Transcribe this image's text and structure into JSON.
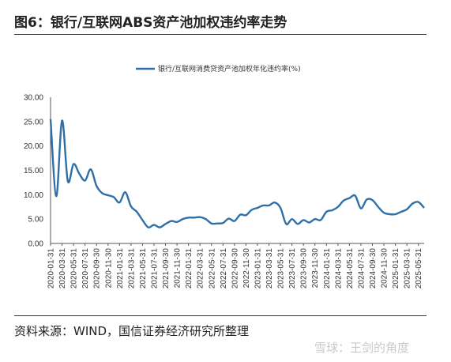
{
  "figure": {
    "title": "图6：银行/互联网ABS资产池加权违约率走势",
    "source": "资料来源：WIND，国信证券经济研究所整理",
    "watermark": "雪球：王剑的角度"
  },
  "chart_data": {
    "type": "line",
    "legend_position": "top-center",
    "ylim": [
      0,
      30
    ],
    "yticks": [
      "30.00",
      "25.00",
      "20.00",
      "15.00",
      "10.00",
      "5.00",
      "0.00"
    ],
    "grid": false,
    "color": "#2e6fa8",
    "x_tick_labels": [
      "2020-01-31",
      "2020-03-31",
      "2020-05-31",
      "2020-07-31",
      "2020-09-30",
      "2020-11-30",
      "2021-01-31",
      "2021-03-31",
      "2021-05-31",
      "2021-07-31",
      "2021-09-30",
      "2021-11-30",
      "2022-01-31",
      "2022-03-31",
      "2022-05-31",
      "2022-07-31",
      "2022-09-30",
      "2022-11-30",
      "2023-01-31",
      "2023-03-31",
      "2023-05-31",
      "2023-07-31",
      "2023-09-30",
      "2023-11-30",
      "2024-01-31",
      "2024-03-31",
      "2024-05-31",
      "2024-07-31",
      "2024-09-30",
      "2024-11-30",
      "2025-01-31",
      "2025-03-31",
      "2025-05-31"
    ],
    "series": [
      {
        "name": "银行/互联网消费贷资产池加权年化违约率(%)",
        "x": [
          "2020-01",
          "2020-02",
          "2020-03",
          "2020-04",
          "2020-05",
          "2020-06",
          "2020-07",
          "2020-08",
          "2020-09",
          "2020-10",
          "2020-11",
          "2020-12",
          "2021-01",
          "2021-02",
          "2021-03",
          "2021-04",
          "2021-05",
          "2021-06",
          "2021-07",
          "2021-08",
          "2021-09",
          "2021-10",
          "2021-11",
          "2021-12",
          "2022-01",
          "2022-02",
          "2022-03",
          "2022-04",
          "2022-05",
          "2022-06",
          "2022-07",
          "2022-08",
          "2022-09",
          "2022-10",
          "2022-11",
          "2022-12",
          "2023-01",
          "2023-02",
          "2023-03",
          "2023-04",
          "2023-05",
          "2023-06",
          "2023-07",
          "2023-08",
          "2023-09",
          "2023-10",
          "2023-11",
          "2023-12",
          "2024-01",
          "2024-02",
          "2024-03",
          "2024-04",
          "2024-05",
          "2024-06",
          "2024-07",
          "2024-08",
          "2024-09",
          "2024-10",
          "2024-11",
          "2024-12",
          "2025-01",
          "2025-02",
          "2025-03",
          "2025-04",
          "2025-05",
          "2025-06"
        ],
        "values": [
          25.5,
          9.7,
          25.2,
          12.8,
          16.3,
          14.3,
          12.9,
          15.2,
          11.8,
          10.3,
          9.9,
          9.5,
          8.4,
          10.5,
          7.6,
          6.5,
          4.8,
          3.3,
          3.8,
          3.3,
          4.0,
          4.6,
          4.4,
          5.0,
          5.3,
          5.3,
          5.4,
          5.0,
          4.1,
          4.1,
          4.2,
          5.1,
          4.6,
          5.9,
          5.8,
          6.9,
          7.3,
          7.8,
          7.8,
          8.4,
          7.3,
          4.0,
          5.0,
          4.0,
          4.8,
          4.3,
          5.0,
          4.8,
          6.5,
          6.8,
          7.5,
          8.8,
          9.3,
          9.8,
          7.2,
          9.0,
          8.9,
          7.5,
          6.3,
          6.0,
          6.0,
          6.5,
          7.0,
          8.2,
          8.5,
          7.3
        ]
      }
    ]
  }
}
